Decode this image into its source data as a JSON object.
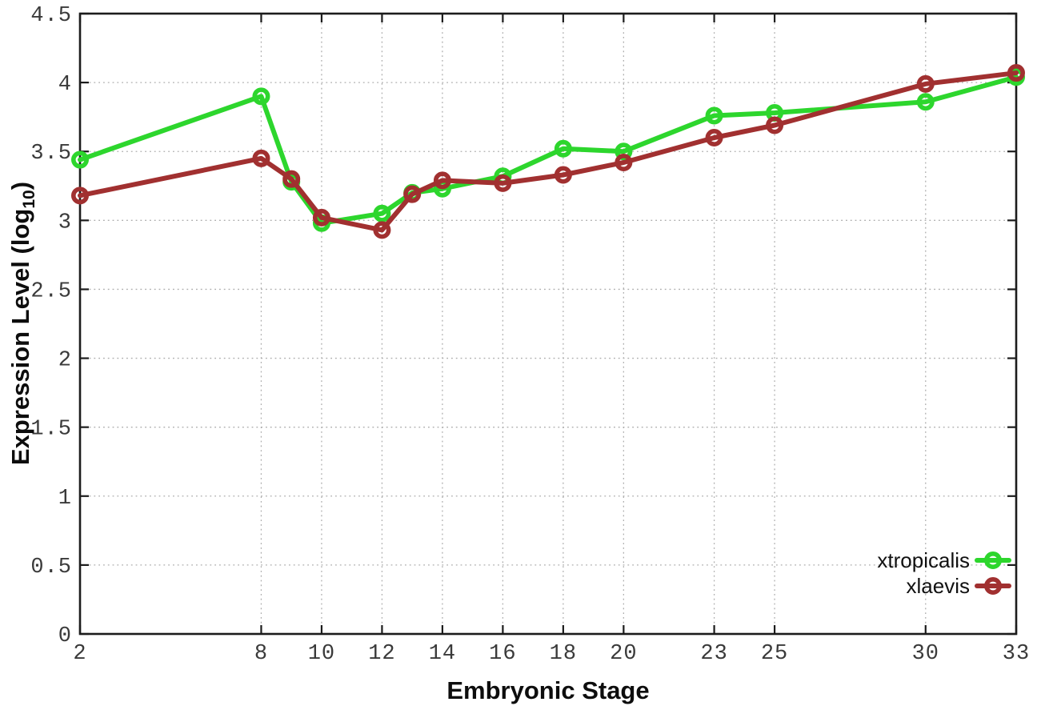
{
  "chart_data": {
    "type": "line",
    "title": "",
    "xlabel": "Embryonic Stage",
    "ylabel_parts": {
      "main": "Expression Level (log",
      "sub": "10",
      "end": ")"
    },
    "xlim": [
      2,
      33
    ],
    "ylim": [
      0,
      4.5
    ],
    "grid": true,
    "legend_position": "bottom-right",
    "x": [
      2,
      8,
      9,
      10,
      12,
      13,
      14,
      16,
      18,
      20,
      23,
      25,
      30,
      33
    ],
    "x_tick_values": [
      2,
      8,
      10,
      12,
      14,
      16,
      18,
      20,
      23,
      25,
      30,
      33
    ],
    "x_tick_labels": [
      "2",
      "8",
      "10",
      "12",
      "14",
      "16",
      "18",
      "20",
      "23",
      "25",
      "30",
      "33"
    ],
    "y_tick_values": [
      0,
      0.5,
      1,
      1.5,
      2,
      2.5,
      3,
      3.5,
      4,
      4.5
    ],
    "y_tick_labels": [
      "0",
      "0.5",
      "1",
      "1.5",
      "2",
      "2.5",
      "3",
      "3.5",
      "4",
      "4.5"
    ],
    "series": [
      {
        "name": "xtropicalis",
        "color": "#2dd62d",
        "values": [
          3.44,
          3.9,
          3.28,
          2.98,
          3.05,
          3.2,
          3.23,
          3.32,
          3.52,
          3.5,
          3.76,
          3.78,
          3.86,
          4.04
        ]
      },
      {
        "name": "xlaevis",
        "color": "#a13030",
        "values": [
          3.18,
          3.45,
          3.3,
          3.02,
          2.93,
          3.19,
          3.29,
          3.27,
          3.33,
          3.42,
          3.6,
          3.69,
          3.99,
          4.07
        ]
      }
    ]
  },
  "style_colors": {
    "border": "#1c1c1c",
    "grid": "#adadad",
    "tick_text": "#3a3a3a",
    "marker_fill": "none",
    "background": "#ffffff"
  }
}
